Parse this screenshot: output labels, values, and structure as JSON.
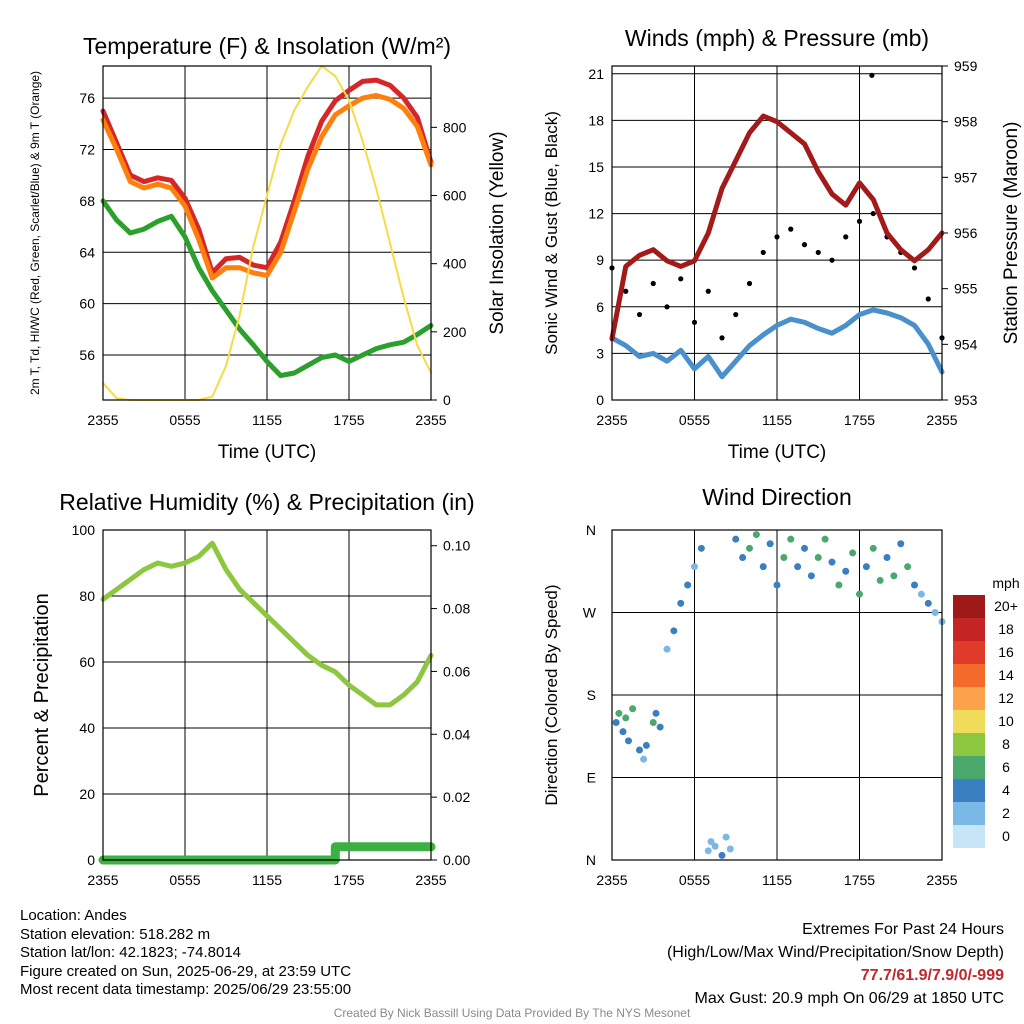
{
  "chart_data": [
    {
      "type": "line",
      "title": "Temperature (F) & Insolation (W/m²)",
      "xlabel": "Time (UTC)",
      "ylabel": "2m T, Td, HI/WC (Red, Green, Scarlet/Blue) & 9m T (Orange)",
      "y2label": "Solar Insolation (Yellow)",
      "x_ticks": [
        "2355",
        "0555",
        "1155",
        "1755",
        "2355"
      ],
      "y_ticks": [
        56,
        60,
        64,
        68,
        72,
        76
      ],
      "y2_ticks": [
        0,
        200,
        400,
        600,
        800
      ],
      "ylim": [
        52.5,
        78.5
      ],
      "y2lim": [
        0,
        980
      ],
      "x_hours_since_2355": [
        0,
        1,
        2,
        3,
        4,
        5,
        6,
        7,
        8,
        9,
        10,
        11,
        12,
        13,
        14,
        15,
        16,
        17,
        18,
        19,
        20,
        21,
        22,
        23,
        24
      ],
      "series": [
        {
          "axis": "left",
          "color": "#d62728",
          "values": [
            75.0,
            72.5,
            70.0,
            69.5,
            69.8,
            69.6,
            68.2,
            65.8,
            62.4,
            63.5,
            63.6,
            63.0,
            62.8,
            64.8,
            68.0,
            71.5,
            74.2,
            75.8,
            76.6,
            77.3,
            77.4,
            77.0,
            76.0,
            74.5,
            71.0
          ]
        },
        {
          "axis": "left",
          "color": "#ff7f0e",
          "values": [
            74.3,
            72.0,
            69.5,
            69.0,
            69.3,
            69.0,
            67.6,
            65.0,
            62.0,
            62.8,
            62.8,
            62.4,
            62.2,
            64.0,
            67.2,
            70.5,
            73.0,
            74.7,
            75.4,
            76.0,
            76.2,
            75.9,
            75.2,
            73.8,
            70.8
          ]
        },
        {
          "axis": "left",
          "color": "#2ca02c",
          "values": [
            68.0,
            66.5,
            65.5,
            65.8,
            66.4,
            66.8,
            65.2,
            62.8,
            61.0,
            59.5,
            58.0,
            56.8,
            55.5,
            54.4,
            54.6,
            55.2,
            55.8,
            56.0,
            55.5,
            56.0,
            56.5,
            56.8,
            57.0,
            57.6,
            58.3
          ]
        },
        {
          "axis": "right",
          "color": "#f5dc46",
          "values": [
            50,
            5,
            0,
            0,
            0,
            0,
            0,
            0,
            10,
            100,
            250,
            450,
            600,
            750,
            850,
            920,
            980,
            950,
            880,
            760,
            620,
            460,
            300,
            160,
            80
          ]
        }
      ]
    },
    {
      "type": "scatter",
      "title": "Winds (mph) & Pressure (mb)",
      "xlabel": "Time (UTC)",
      "ylabel": "Sonic Wind & Gust (Blue, Black)",
      "y2label": "Station Pressure (Maroon)",
      "x_ticks": [
        "2355",
        "0555",
        "1155",
        "1755",
        "2355"
      ],
      "y_ticks": [
        0,
        3,
        6,
        9,
        12,
        15,
        18,
        21
      ],
      "y2_ticks": [
        953,
        954,
        955,
        956,
        957,
        958,
        959
      ],
      "ylim": [
        0,
        21.5
      ],
      "y2lim": [
        953,
        959
      ],
      "x_hours_since_2355": [
        0,
        1,
        2,
        3,
        4,
        5,
        6,
        7,
        8,
        9,
        10,
        11,
        12,
        13,
        14,
        15,
        16,
        17,
        18,
        19,
        20,
        21,
        22,
        23,
        24
      ],
      "series": [
        {
          "name": "",
          "axis": "left",
          "style": "line",
          "color": "#4a90cc",
          "values": [
            4.0,
            3.5,
            2.8,
            3.0,
            2.5,
            3.2,
            2.0,
            2.8,
            1.5,
            2.5,
            3.5,
            4.2,
            4.8,
            5.2,
            5.0,
            4.6,
            4.3,
            4.8,
            5.5,
            5.8,
            5.6,
            5.3,
            4.8,
            3.6,
            1.8
          ]
        },
        {
          "name": "",
          "axis": "left",
          "style": "dots",
          "color": "#000000",
          "values": [
            8.5,
            7.0,
            5.5,
            7.5,
            6.0,
            7.8,
            5.0,
            7.0,
            4.0,
            5.5,
            7.5,
            9.5,
            10.5,
            11.0,
            10.0,
            9.5,
            9.0,
            10.5,
            11.5,
            12.0,
            10.5,
            9.5,
            8.5,
            6.5,
            4.0
          ]
        },
        {
          "name": "",
          "axis": "right",
          "style": "line",
          "color": "#a31a1a",
          "values": [
            954.1,
            955.4,
            955.6,
            955.7,
            955.5,
            955.4,
            955.5,
            956.0,
            956.8,
            957.3,
            957.8,
            958.1,
            958.0,
            957.8,
            957.6,
            957.1,
            956.7,
            956.5,
            956.9,
            956.6,
            956.0,
            955.7,
            955.5,
            955.7,
            956.0
          ]
        }
      ],
      "max_gust_point": {
        "x": 18.9,
        "y": 20.9
      }
    },
    {
      "type": "line",
      "title": "Relative Humidity (%) & Precipitation (in)",
      "ylabel": "Percent & Precipitation",
      "x_ticks": [
        "2355",
        "0555",
        "1155",
        "1755",
        "2355"
      ],
      "y_ticks": [
        0,
        20,
        40,
        60,
        80,
        100
      ],
      "y2_ticks": [
        "0.00",
        "0.02",
        "0.04",
        "0.06",
        "0.08",
        "0.10"
      ],
      "ylim": [
        0,
        100
      ],
      "y2lim": [
        0,
        0.105
      ],
      "x_hours_since_2355": [
        0,
        1,
        2,
        3,
        4,
        5,
        6,
        7,
        8,
        9,
        10,
        11,
        12,
        13,
        14,
        15,
        16,
        17,
        18,
        19,
        20,
        21,
        22,
        23,
        24
      ],
      "series": [
        {
          "axis": "left",
          "color": "#8dc63f",
          "values": [
            79,
            82,
            85,
            88,
            90,
            89,
            90,
            92,
            96,
            88,
            82,
            78,
            74,
            70,
            66,
            62,
            59,
            57,
            53,
            50,
            47,
            47,
            50,
            54,
            62
          ]
        },
        {
          "axis": "left",
          "color": "#3cb043",
          "step": true,
          "values": [
            0,
            0,
            0,
            0,
            0,
            0,
            0,
            0,
            0,
            0,
            0,
            0,
            0,
            0,
            0,
            0,
            0,
            4,
            4,
            4,
            4,
            4,
            4,
            4,
            4
          ]
        }
      ]
    },
    {
      "type": "scatter",
      "title": "Wind Direction",
      "ylabel": "Direction (Colored By Speed)",
      "x_ticks": [
        "2355",
        "0555",
        "1155",
        "1755",
        "2355"
      ],
      "y_ticks": [
        "N",
        "E",
        "S",
        "W",
        "N"
      ],
      "ylim": [
        0,
        360
      ],
      "colorbar": {
        "label": "mph",
        "labels": [
          "20+",
          "18",
          "16",
          "14",
          "12",
          "10",
          "8",
          "6",
          "4",
          "2",
          "0"
        ],
        "colors": [
          "#9e1a1a",
          "#c42424",
          "#e03a2a",
          "#f46c2c",
          "#fca24a",
          "#f0dc5a",
          "#8dc63f",
          "#4aa86c",
          "#3a7fc0",
          "#7ab8e6",
          "#c6e6f8"
        ]
      },
      "points": [
        {
          "x": 0.3,
          "y": 150,
          "s": 4
        },
        {
          "x": 0.5,
          "y": 160,
          "s": 6
        },
        {
          "x": 0.8,
          "y": 140,
          "s": 3
        },
        {
          "x": 1.0,
          "y": 155,
          "s": 5
        },
        {
          "x": 1.2,
          "y": 130,
          "s": 4
        },
        {
          "x": 1.5,
          "y": 165,
          "s": 6
        },
        {
          "x": 2.0,
          "y": 120,
          "s": 3
        },
        {
          "x": 2.3,
          "y": 110,
          "s": 2
        },
        {
          "x": 2.5,
          "y": 125,
          "s": 4
        },
        {
          "x": 3.0,
          "y": 150,
          "s": 5
        },
        {
          "x": 3.2,
          "y": 160,
          "s": 3
        },
        {
          "x": 3.5,
          "y": 145,
          "s": 4
        },
        {
          "x": 4.0,
          "y": 230,
          "s": 2
        },
        {
          "x": 4.5,
          "y": 250,
          "s": 3
        },
        {
          "x": 5.0,
          "y": 280,
          "s": 4
        },
        {
          "x": 5.5,
          "y": 300,
          "s": 3
        },
        {
          "x": 6.0,
          "y": 320,
          "s": 2
        },
        {
          "x": 6.5,
          "y": 340,
          "s": 4
        },
        {
          "x": 7.0,
          "y": 10,
          "s": 2
        },
        {
          "x": 7.2,
          "y": 20,
          "s": 1
        },
        {
          "x": 7.5,
          "y": 15,
          "s": 2
        },
        {
          "x": 8.0,
          "y": 5,
          "s": 3
        },
        {
          "x": 8.3,
          "y": 25,
          "s": 2
        },
        {
          "x": 8.6,
          "y": 12,
          "s": 1
        },
        {
          "x": 9.0,
          "y": 350,
          "s": 3
        },
        {
          "x": 9.5,
          "y": 330,
          "s": 4
        },
        {
          "x": 10.0,
          "y": 340,
          "s": 5
        },
        {
          "x": 10.5,
          "y": 355,
          "s": 6
        },
        {
          "x": 11.0,
          "y": 320,
          "s": 4
        },
        {
          "x": 11.5,
          "y": 345,
          "s": 3
        },
        {
          "x": 12.0,
          "y": 300,
          "s": 4
        },
        {
          "x": 12.5,
          "y": 330,
          "s": 5
        },
        {
          "x": 13.0,
          "y": 350,
          "s": 6
        },
        {
          "x": 13.5,
          "y": 320,
          "s": 4
        },
        {
          "x": 14.0,
          "y": 340,
          "s": 3
        },
        {
          "x": 14.5,
          "y": 310,
          "s": 4
        },
        {
          "x": 15.0,
          "y": 330,
          "s": 5
        },
        {
          "x": 15.5,
          "y": 350,
          "s": 6
        },
        {
          "x": 16.0,
          "y": 325,
          "s": 4
        },
        {
          "x": 16.5,
          "y": 300,
          "s": 5
        },
        {
          "x": 17.0,
          "y": 315,
          "s": 4
        },
        {
          "x": 17.5,
          "y": 335,
          "s": 6
        },
        {
          "x": 18.0,
          "y": 290,
          "s": 5
        },
        {
          "x": 18.5,
          "y": 320,
          "s": 4
        },
        {
          "x": 19.0,
          "y": 340,
          "s": 6
        },
        {
          "x": 19.5,
          "y": 305,
          "s": 5
        },
        {
          "x": 20.0,
          "y": 330,
          "s": 4
        },
        {
          "x": 20.5,
          "y": 310,
          "s": 6
        },
        {
          "x": 21.0,
          "y": 345,
          "s": 4
        },
        {
          "x": 21.5,
          "y": 320,
          "s": 5
        },
        {
          "x": 22.0,
          "y": 300,
          "s": 3
        },
        {
          "x": 22.5,
          "y": 290,
          "s": 2
        },
        {
          "x": 23.0,
          "y": 280,
          "s": 3
        },
        {
          "x": 23.5,
          "y": 270,
          "s": 2
        },
        {
          "x": 24.0,
          "y": 260,
          "s": 1
        }
      ]
    }
  ],
  "info": {
    "location": "Location: Andes",
    "elevation": "Station elevation: 518.282 m",
    "latlon": "Station lat/lon: 42.1823; -74.8014",
    "created": "Figure created on Sun, 2025-06-29, at 23:59 UTC",
    "recent": "Most recent data timestamp: 2025/06/29 23:55:00"
  },
  "extremes": {
    "title": "Extremes For Past 24 Hours",
    "subtitle": "(High/Low/Max Wind/Precipitation/Snow Depth)",
    "values": "77.7/61.9/7.9/0/-999",
    "max_gust": "Max Gust: 20.9 mph On 06/29 at 1850 UTC"
  },
  "credit": "Created By Nick Bassill Using Data Provided By The NYS Mesonet"
}
